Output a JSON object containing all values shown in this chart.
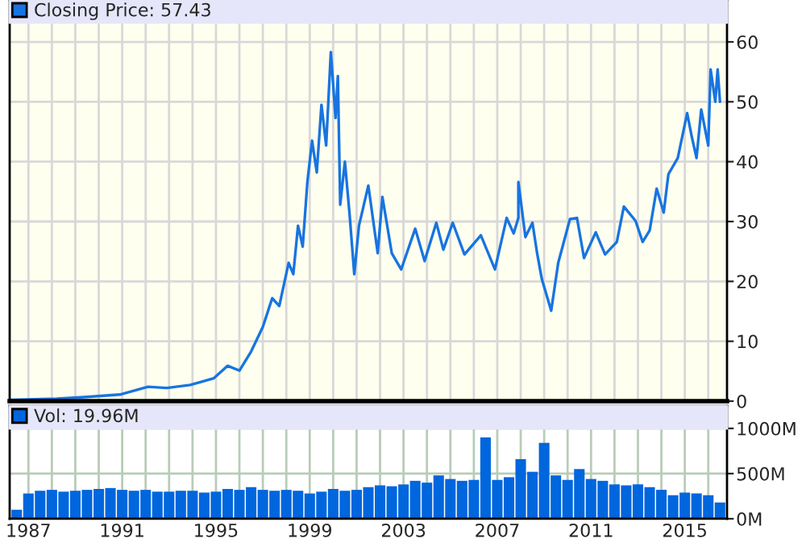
{
  "chart_data": [
    {
      "type": "line",
      "legend": "top left",
      "grid": true,
      "tick_labels": "y",
      "xlim": [
        1986.2,
        2016.8
      ],
      "ylim": [
        0,
        67
      ],
      "xticks": [
        {
          "value": 1987,
          "label": null
        },
        {
          "value": 1988,
          "label": null
        },
        {
          "value": 1989,
          "label": null
        },
        {
          "value": 1990,
          "label": null
        },
        {
          "value": 1991,
          "label": null
        },
        {
          "value": 1992,
          "label": null
        },
        {
          "value": 1993,
          "label": null
        },
        {
          "value": 1994,
          "label": null
        },
        {
          "value": 1995,
          "label": null
        },
        {
          "value": 1996,
          "label": null
        },
        {
          "value": 1997,
          "label": null
        },
        {
          "value": 1998,
          "label": null
        },
        {
          "value": 1999,
          "label": null
        },
        {
          "value": 2000,
          "label": null
        },
        {
          "value": 2001,
          "label": null
        },
        {
          "value": 2002,
          "label": null
        },
        {
          "value": 2003,
          "label": null
        },
        {
          "value": 2004,
          "label": null
        },
        {
          "value": 2005,
          "label": null
        },
        {
          "value": 2006,
          "label": null
        },
        {
          "value": 2007,
          "label": null
        },
        {
          "value": 2008,
          "label": null
        },
        {
          "value": 2009,
          "label": null
        },
        {
          "value": 2010,
          "label": null
        },
        {
          "value": 2011,
          "label": null
        },
        {
          "value": 2012,
          "label": null
        },
        {
          "value": 2013,
          "label": null
        },
        {
          "value": 2014,
          "label": null
        },
        {
          "value": 2015,
          "label": null
        },
        {
          "value": 2016,
          "label": null
        }
      ],
      "yticks": [
        0,
        10,
        20,
        30,
        40,
        50,
        60
      ],
      "series": [
        {
          "name": "Closing Price: 57.43",
          "color": "#1874e0",
          "x": [
            1986.2,
            1988.2,
            1989.5,
            1990.9,
            1992.1,
            1992.9,
            1993.9,
            1994.9,
            1995.5,
            1996.0,
            1996.5,
            1997.0,
            1997.4,
            1997.7,
            1998.1,
            1998.3,
            1998.5,
            1998.7,
            1998.9,
            1999.1,
            1999.3,
            1999.5,
            1999.7,
            1999.9,
            2000.1,
            2000.2,
            2000.3,
            2000.5,
            2000.7,
            2000.9,
            2001.1,
            2001.5,
            2001.9,
            2002.1,
            2002.5,
            2002.9,
            2003.5,
            2003.9,
            2004.4,
            2004.7,
            2005.1,
            2005.6,
            2006.3,
            2006.9,
            2007.4,
            2007.7,
            2007.9,
            2007.9,
            2008.2,
            2008.5,
            2008.7,
            2008.9,
            2009.3,
            2009.6,
            2010.1,
            2010.4,
            2010.7,
            2011.2,
            2011.6,
            2012.1,
            2012.4,
            2012.9,
            2013.2,
            2013.5,
            2013.8,
            2014.1,
            2014.3,
            2014.7,
            2015.1,
            2015.3,
            2015.5,
            2015.7,
            2016.0,
            2016.1,
            2016.3,
            2016.4,
            2016.5
          ],
          "values": [
            0.2,
            0.4,
            0.7,
            1.1,
            2.4,
            2.2,
            2.7,
            3.8,
            5.9,
            5.1,
            8.3,
            12.4,
            17.2,
            15.9,
            23.1,
            21.2,
            29.3,
            25.8,
            36.6,
            43.5,
            38.2,
            49.5,
            42.7,
            58.3,
            47.3,
            54.3,
            32.8,
            40,
            31.2,
            21.2,
            29.3,
            36,
            24.7,
            34.1,
            24.7,
            22,
            28.8,
            23.4,
            29.8,
            25.3,
            29.8,
            24.5,
            27.7,
            22,
            30.6,
            28,
            30.6,
            36.6,
            27.4,
            29.8,
            24.7,
            20.4,
            15.1,
            23.1,
            30.4,
            30.6,
            23.9,
            28.2,
            24.5,
            26.6,
            32.5,
            30.1,
            26.6,
            28.5,
            35.5,
            31.5,
            37.9,
            40.6,
            48.1,
            44.1,
            40.6,
            48.7,
            42.7,
            55.4,
            50,
            55.4,
            50
          ]
        }
      ]
    },
    {
      "type": "bar",
      "legend": "top left",
      "grid": true,
      "xlim": [
        1986.2,
        2016.8
      ],
      "ylim": [
        0,
        1250
      ],
      "xticks": [
        1987,
        {
          "value": 1988,
          "label": null
        },
        {
          "value": 1989,
          "label": null
        },
        {
          "value": 1990,
          "label": null
        },
        1991,
        {
          "value": 1992,
          "label": null
        },
        {
          "value": 1993,
          "label": null
        },
        {
          "value": 1994,
          "label": null
        },
        1995,
        {
          "value": 1996,
          "label": null
        },
        {
          "value": 1997,
          "label": null
        },
        {
          "value": 1998,
          "label": null
        },
        1999,
        {
          "value": 2000,
          "label": null
        },
        {
          "value": 2001,
          "label": null
        },
        {
          "value": 2002,
          "label": null
        },
        2003,
        {
          "value": 2004,
          "label": null
        },
        {
          "value": 2005,
          "label": null
        },
        {
          "value": 2006,
          "label": null
        },
        2007,
        {
          "value": 2008,
          "label": null
        },
        {
          "value": 2009,
          "label": null
        },
        {
          "value": 2010,
          "label": null
        },
        2011,
        {
          "value": 2012,
          "label": null
        },
        {
          "value": 2013,
          "label": null
        },
        {
          "value": 2014,
          "label": null
        },
        2015,
        {
          "value": 2016,
          "label": null
        }
      ],
      "yticks": [
        {
          "value": 0,
          "label": "0M"
        },
        {
          "value": 500,
          "label": "500M"
        },
        {
          "value": 1000,
          "label": "1000M"
        }
      ],
      "series": [
        {
          "name": "Vol: 19.96M",
          "color": "#0066dd",
          "x": [
            1986.5,
            1987.0,
            1987.5,
            1988.0,
            1988.5,
            1989.0,
            1989.5,
            1990.0,
            1990.5,
            1991.0,
            1991.5,
            1992.0,
            1992.5,
            1993.0,
            1993.5,
            1994.0,
            1994.5,
            1995.0,
            1995.5,
            1996.0,
            1996.5,
            1997.0,
            1997.5,
            1998.0,
            1998.5,
            1999.0,
            1999.5,
            2000.0,
            2000.5,
            2001.0,
            2001.5,
            2002.0,
            2002.5,
            2003.0,
            2003.5,
            2004.0,
            2004.5,
            2005.0,
            2005.5,
            2006.0,
            2006.5,
            2007.0,
            2007.5,
            2008.0,
            2008.5,
            2009.0,
            2009.5,
            2010.0,
            2010.5,
            2011.0,
            2011.5,
            2012.0,
            2012.5,
            2013.0,
            2013.5,
            2014.0,
            2014.5,
            2015.0,
            2015.5,
            2016.0,
            2016.5
          ],
          "values": [
            100,
            280,
            310,
            320,
            300,
            310,
            320,
            330,
            340,
            320,
            310,
            320,
            300,
            300,
            310,
            310,
            290,
            300,
            330,
            320,
            350,
            320,
            310,
            320,
            310,
            280,
            300,
            330,
            310,
            320,
            350,
            370,
            360,
            380,
            420,
            400,
            480,
            440,
            420,
            430,
            900,
            430,
            460,
            660,
            520,
            840,
            480,
            430,
            550,
            440,
            420,
            380,
            370,
            380,
            350,
            320,
            260,
            290,
            280,
            260,
            180
          ]
        }
      ]
    }
  ]
}
